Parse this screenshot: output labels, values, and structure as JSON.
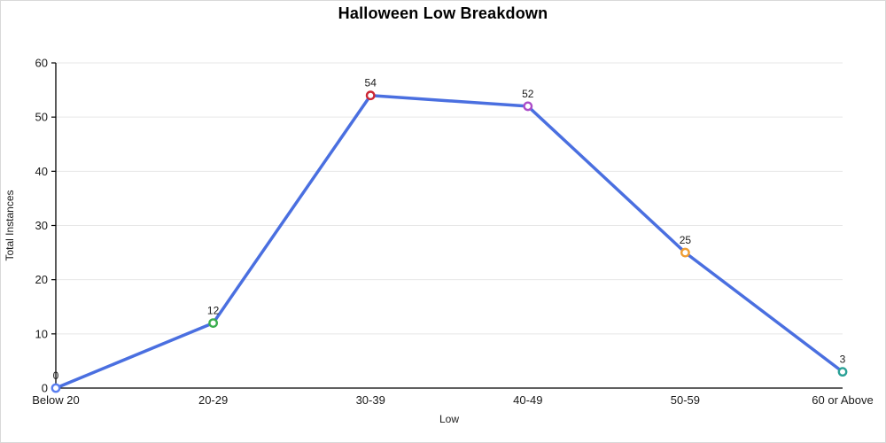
{
  "chart": {
    "title": "Halloween Low Breakdown"
  },
  "chart_data": {
    "type": "line",
    "title": "Halloween Low Breakdown",
    "categories": [
      "Below 20",
      "20-29",
      "30-39",
      "40-49",
      "50-59",
      "60 or Above"
    ],
    "values": [
      0,
      12,
      54,
      52,
      25,
      3
    ],
    "data_labels": [
      "0",
      "12",
      "54",
      "52",
      "25",
      "3"
    ],
    "xlabel": "Low",
    "ylabel": "Total Instances",
    "ylim": [
      0,
      60
    ],
    "yticks": [
      0,
      10,
      20,
      30,
      40,
      50,
      60
    ],
    "grid": true,
    "legend_position": "none",
    "line_color": "#4a6fe0",
    "marker_fill": "#ffffff",
    "marker_colors": [
      "#5a7ef0",
      "#3bae4e",
      "#cc2936",
      "#ab4cc8",
      "#f09e33",
      "#2ba196"
    ],
    "gridline_color": "#e7e7e7",
    "axis_color": "#000000",
    "text_color": "#1a1a1a"
  }
}
